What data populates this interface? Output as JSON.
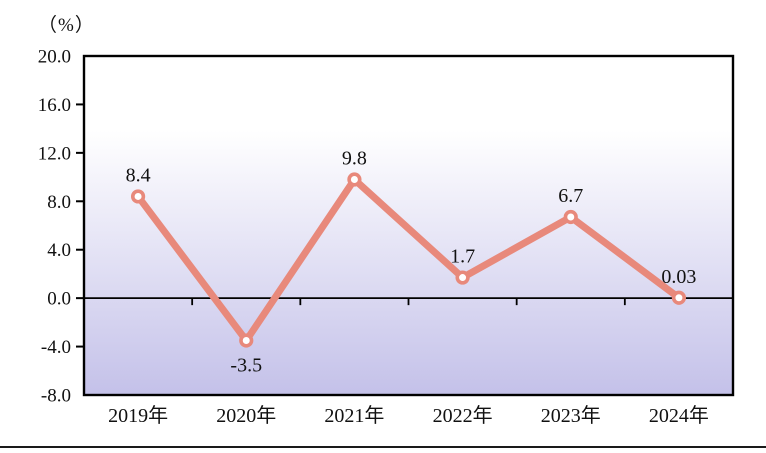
{
  "chart_data": {
    "type": "line",
    "title": "",
    "unit_label": "（%）",
    "categories": [
      "2019年",
      "2020年",
      "2021年",
      "2022年",
      "2023年",
      "2024年"
    ],
    "values": [
      8.4,
      -3.5,
      9.8,
      1.7,
      6.7,
      0.03
    ],
    "point_labels": [
      "8.4",
      "-3.5",
      "9.8",
      "1.7",
      "6.7",
      "0.03"
    ],
    "ylim": [
      -8.0,
      20.0
    ],
    "yticks": [
      20.0,
      16.0,
      12.0,
      8.0,
      4.0,
      0.0,
      -4.0,
      -8.0
    ],
    "xlabel": "",
    "ylabel": "",
    "grid": false,
    "legend": "none",
    "colors": {
      "line": "#E8897B",
      "marker_fill": "#FFFFFF",
      "axis": "#000000",
      "text": "#111111",
      "plot_gradient_top": "#FFFFFF",
      "plot_gradient_bottom": "#C4C1E9"
    }
  }
}
